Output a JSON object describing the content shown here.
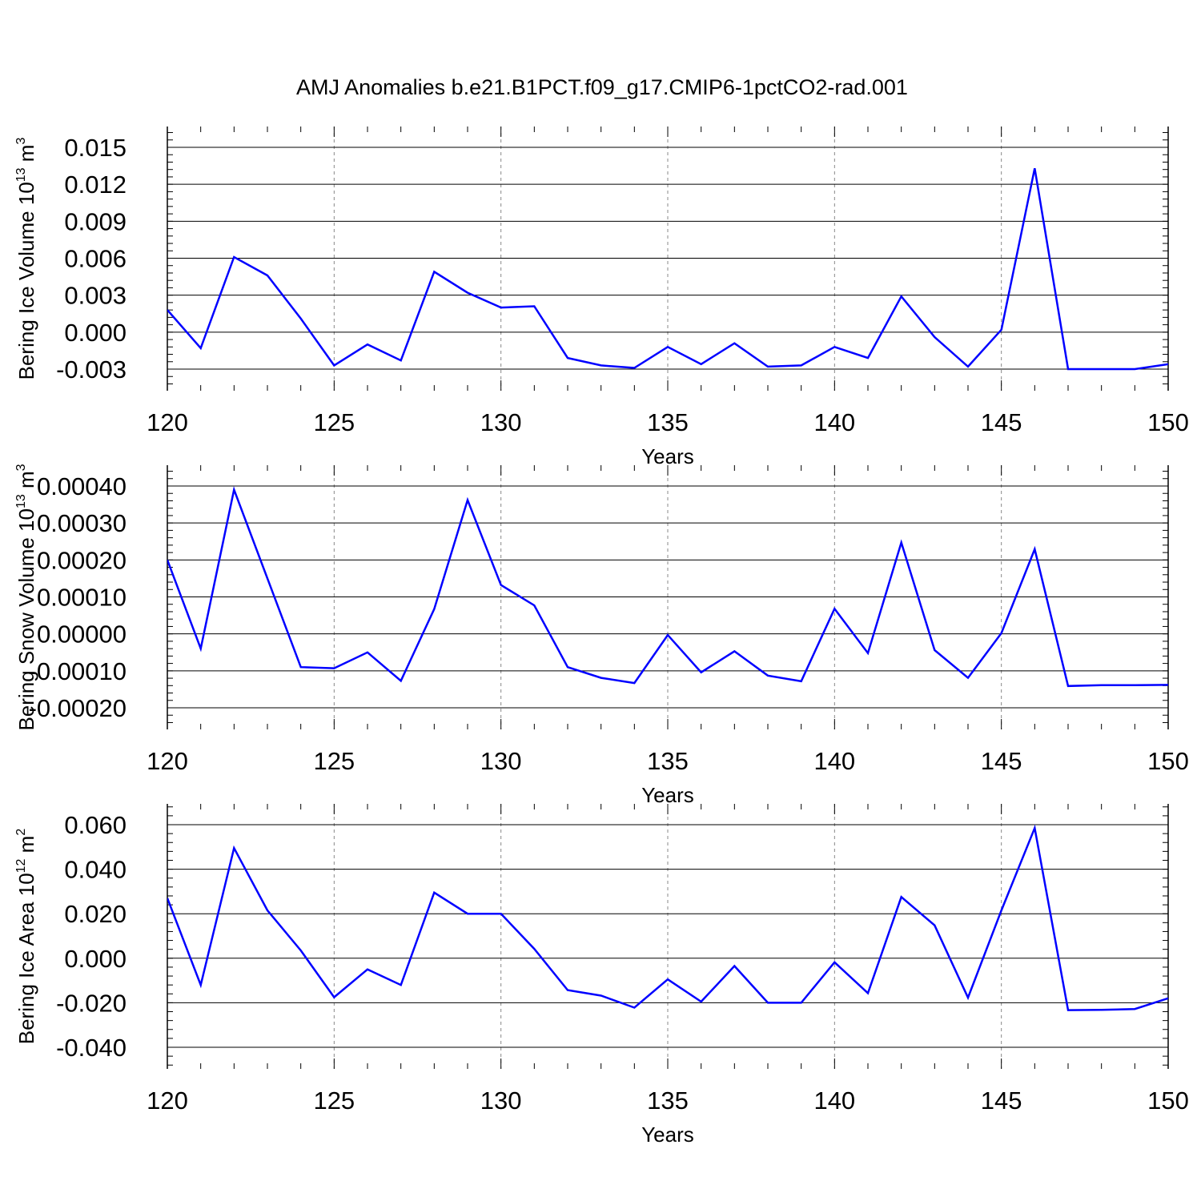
{
  "title": "AMJ Anomalies b.e21.B1PCT.f09_g17.CMIP6-1pctCO2-rad.001",
  "colors": {
    "line": "#0000ff",
    "axis": "#000000",
    "grid": "#888888"
  },
  "chart_data": [
    {
      "type": "line",
      "title": "AMJ Anomalies b.e21.B1PCT.f09_g17.CMIP6-1pctCO2-rad.001",
      "xlabel": "Years",
      "ylabel": {
        "text": "Bering Ice Volume 10",
        "exp": "13",
        "unit": " m",
        "unit_exp": "3"
      },
      "xlim": [
        120,
        150
      ],
      "ylim": [
        -0.003,
        0.015
      ],
      "xticks": [
        120,
        125,
        130,
        135,
        140,
        145,
        150
      ],
      "yticks": [
        -0.003,
        0.0,
        0.003,
        0.006,
        0.009,
        0.012,
        0.015
      ],
      "ytick_labels": [
        "-0.003",
        "0.000",
        "0.003",
        "0.006",
        "0.009",
        "0.012",
        "0.015"
      ],
      "grid": "vertical dashed at major x ticks",
      "series": [
        {
          "x": [
            120,
            121,
            122,
            123,
            124,
            125,
            126,
            127,
            128,
            129,
            130,
            131,
            132,
            133,
            134,
            135,
            136,
            137,
            138,
            139,
            140,
            141,
            142,
            143,
            144,
            145,
            146,
            147,
            148,
            149,
            150
          ],
          "values": [
            0.0018,
            -0.0013,
            0.0061,
            0.0046,
            0.0011,
            -0.0027,
            -0.001,
            -0.0023,
            0.0049,
            0.0032,
            0.002,
            0.0021,
            -0.0021,
            -0.0027,
            -0.0029,
            -0.0012,
            -0.0026,
            -0.0009,
            -0.0028,
            -0.0027,
            -0.0012,
            -0.0021,
            0.0029,
            -0.0004,
            -0.0028,
            0.0002,
            0.0133,
            -0.003,
            -0.003,
            -0.003,
            -0.0026
          ]
        }
      ]
    },
    {
      "type": "line",
      "xlabel": "Years",
      "ylabel": {
        "text": "Bering Snow Volume 10",
        "exp": "13",
        "unit": " m",
        "unit_exp": "3"
      },
      "xlim": [
        120,
        150
      ],
      "ylim": [
        -0.0002,
        0.0004
      ],
      "xticks": [
        120,
        125,
        130,
        135,
        140,
        145,
        150
      ],
      "yticks": [
        -0.0002,
        -0.0001,
        0.0,
        0.0001,
        0.0002,
        0.0003,
        0.0004
      ],
      "ytick_labels": [
        "-0.00020",
        "-0.00010",
        "0.00000",
        "0.00010",
        "0.00020",
        "0.00030",
        "0.00040"
      ],
      "grid": "vertical dashed at major x ticks",
      "series": [
        {
          "x": [
            120,
            121,
            122,
            123,
            124,
            125,
            126,
            127,
            128,
            129,
            130,
            131,
            132,
            133,
            134,
            135,
            136,
            137,
            138,
            139,
            140,
            141,
            142,
            143,
            144,
            145,
            146,
            147,
            148,
            149,
            150
          ],
          "values": [
            0.0002,
            -4e-05,
            0.00039,
            0.00015,
            -9e-05,
            -9.3e-05,
            -5e-05,
            -0.000127,
            6.7e-05,
            0.000362,
            0.000132,
            7.7e-05,
            -9e-05,
            -0.000119,
            -0.000133,
            -3e-06,
            -0.000104,
            -4.7e-05,
            -0.000113,
            -0.000128,
            6.8e-05,
            -5.2e-05,
            0.000247,
            -4.4e-05,
            -0.000119,
            2e-06,
            0.000229,
            -0.000141,
            -0.000139,
            -0.000139,
            -0.000138
          ]
        }
      ]
    },
    {
      "type": "line",
      "xlabel": "Years",
      "ylabel": {
        "text": "Bering Ice Area 10",
        "exp": "12",
        "unit": " m",
        "unit_exp": "2"
      },
      "xlim": [
        120,
        150
      ],
      "ylim": [
        -0.04,
        0.06
      ],
      "xticks": [
        120,
        125,
        130,
        135,
        140,
        145,
        150
      ],
      "yticks": [
        -0.04,
        -0.02,
        0.0,
        0.02,
        0.04,
        0.06
      ],
      "ytick_labels": [
        "-0.040",
        "-0.020",
        "0.000",
        "0.020",
        "0.040",
        "0.060"
      ],
      "grid": "vertical dashed at major x ticks",
      "series": [
        {
          "x": [
            120,
            121,
            122,
            123,
            124,
            125,
            126,
            127,
            128,
            129,
            130,
            131,
            132,
            133,
            134,
            135,
            136,
            137,
            138,
            139,
            140,
            141,
            142,
            143,
            144,
            145,
            146,
            147,
            148,
            149,
            150
          ],
          "values": [
            0.027,
            -0.012,
            0.0495,
            0.0215,
            0.0035,
            -0.0175,
            -0.005,
            -0.012,
            0.0295,
            0.02,
            0.02,
            0.0042,
            -0.0143,
            -0.0168,
            -0.0222,
            -0.0095,
            -0.0195,
            -0.0035,
            -0.02,
            -0.02,
            -0.0018,
            -0.0157,
            0.0275,
            0.0148,
            -0.0177,
            0.0215,
            0.0585,
            -0.0233,
            -0.0232,
            -0.0228,
            -0.018
          ]
        }
      ]
    }
  ]
}
